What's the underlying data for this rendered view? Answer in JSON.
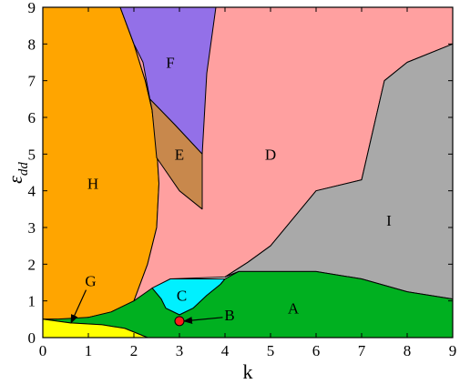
{
  "chart_data": {
    "type": "phase-diagram",
    "xlabel": "k",
    "ylabel": "ε",
    "ylabel_sub": "dd",
    "xlim": [
      0,
      9
    ],
    "ylim": [
      0,
      9
    ],
    "x_ticks": [
      "0",
      "1",
      "2",
      "3",
      "4",
      "5",
      "6",
      "7",
      "8",
      "9"
    ],
    "y_ticks": [
      "0",
      "1",
      "2",
      "3",
      "4",
      "5",
      "6",
      "7",
      "8",
      "9"
    ],
    "regions": [
      {
        "label": "H",
        "color": "#FFA500",
        "label_at": [
          1.1,
          4.2
        ],
        "polygon": [
          [
            0,
            0.5
          ],
          [
            0,
            9
          ],
          [
            1.7,
            9
          ],
          [
            2.0,
            8.0
          ],
          [
            2.25,
            7.0
          ],
          [
            2.4,
            6.2
          ],
          [
            2.5,
            5.2
          ],
          [
            2.55,
            4.2
          ],
          [
            2.5,
            3.0
          ],
          [
            2.3,
            2.0
          ],
          [
            2.0,
            1.0
          ],
          [
            1.5,
            0.7
          ],
          [
            1.0,
            0.55
          ],
          [
            0.6,
            0.45
          ],
          [
            0.3,
            0.5
          ]
        ]
      },
      {
        "label": "D",
        "color": "#FFA0A0",
        "label_at": [
          5.0,
          5.0
        ],
        "polygon": [
          [
            2.3,
            2.0
          ],
          [
            2.5,
            3.0
          ],
          [
            2.55,
            4.2
          ],
          [
            2.5,
            5.2
          ],
          [
            2.4,
            6.2
          ],
          [
            2.25,
            7.0
          ],
          [
            2.0,
            8.0
          ],
          [
            1.7,
            9
          ],
          [
            9,
            9
          ],
          [
            9,
            8.0
          ],
          [
            8.0,
            7.5
          ],
          [
            7.5,
            7.0
          ],
          [
            7.0,
            4.3
          ],
          [
            6.0,
            4.0
          ],
          [
            5.0,
            2.5
          ],
          [
            4.5,
            2.05
          ],
          [
            4.0,
            1.65
          ],
          [
            2.8,
            1.6
          ],
          [
            2.0,
            1.0
          ]
        ]
      },
      {
        "label": "F",
        "color": "#9370E8",
        "label_at": [
          2.8,
          7.5
        ],
        "polygon": [
          [
            1.7,
            9
          ],
          [
            3.8,
            9
          ],
          [
            3.6,
            7.2
          ],
          [
            3.5,
            5.0
          ],
          [
            2.9,
            5.8
          ],
          [
            2.35,
            6.5
          ],
          [
            2.2,
            7.5
          ],
          [
            2.0,
            8.0
          ]
        ]
      },
      {
        "label": "E",
        "color": "#C8884C",
        "label_at": [
          3.0,
          5.0
        ],
        "polygon": [
          [
            2.35,
            6.5
          ],
          [
            2.9,
            5.8
          ],
          [
            3.5,
            5.0
          ],
          [
            3.5,
            3.5
          ],
          [
            3.0,
            4.0
          ],
          [
            2.5,
            4.9
          ],
          [
            2.4,
            6.2
          ]
        ]
      },
      {
        "label": "I",
        "color": "#A9A9A9",
        "label_at": [
          7.6,
          3.2
        ],
        "polygon": [
          [
            4.0,
            1.65
          ],
          [
            4.5,
            2.05
          ],
          [
            5.0,
            2.5
          ],
          [
            6.0,
            4.0
          ],
          [
            7.0,
            4.3
          ],
          [
            7.5,
            7.0
          ],
          [
            8.0,
            7.5
          ],
          [
            9,
            8.0
          ],
          [
            9,
            1.05
          ],
          [
            8.0,
            1.25
          ],
          [
            7.0,
            1.6
          ],
          [
            6.0,
            1.8
          ],
          [
            4.3,
            1.8
          ]
        ]
      },
      {
        "label": "C",
        "color": "#00F0FF",
        "label_at": [
          3.05,
          1.15
        ],
        "polygon": [
          [
            2.8,
            1.6
          ],
          [
            4.0,
            1.6
          ],
          [
            3.9,
            1.45
          ],
          [
            3.6,
            1.15
          ],
          [
            3.3,
            0.8
          ],
          [
            3.0,
            0.62
          ],
          [
            2.7,
            0.8
          ],
          [
            2.6,
            1.05
          ],
          [
            2.4,
            1.35
          ]
        ]
      },
      {
        "label": "A",
        "color": "#00B020",
        "label_at": [
          5.5,
          0.8
        ],
        "polygon": [
          [
            0.3,
            0.5
          ],
          [
            1.0,
            0.55
          ],
          [
            1.5,
            0.7
          ],
          [
            2.0,
            1.0
          ],
          [
            2.4,
            1.35
          ],
          [
            2.6,
            1.05
          ],
          [
            2.7,
            0.8
          ],
          [
            3.0,
            0.62
          ],
          [
            3.3,
            0.8
          ],
          [
            3.6,
            1.15
          ],
          [
            3.9,
            1.45
          ],
          [
            4.0,
            1.6
          ],
          [
            4.3,
            1.8
          ],
          [
            6.0,
            1.8
          ],
          [
            7.0,
            1.6
          ],
          [
            8.0,
            1.25
          ],
          [
            9,
            1.05
          ],
          [
            9,
            0
          ],
          [
            2.3,
            0
          ],
          [
            1.8,
            0.25
          ],
          [
            1.3,
            0.35
          ],
          [
            0.6,
            0.4
          ],
          [
            0,
            0.5
          ]
        ]
      },
      {
        "label": "G",
        "color": "#FFFF00",
        "label_at": [
          1.05,
          1.55
        ],
        "polygon": [
          [
            0,
            0
          ],
          [
            0,
            0.5
          ],
          [
            0.6,
            0.4
          ],
          [
            1.3,
            0.35
          ],
          [
            1.8,
            0.25
          ],
          [
            2.3,
            0
          ]
        ]
      }
    ],
    "point_B": {
      "label": "B",
      "color": "#FF1A1A",
      "x": 3.0,
      "y": 0.45,
      "label_at": [
        4.1,
        0.62
      ]
    },
    "arrows": [
      {
        "from": [
          0.95,
          1.3
        ],
        "to": [
          0.62,
          0.4
        ]
      },
      {
        "from": [
          3.95,
          0.55
        ],
        "to": [
          3.1,
          0.45
        ]
      }
    ]
  }
}
